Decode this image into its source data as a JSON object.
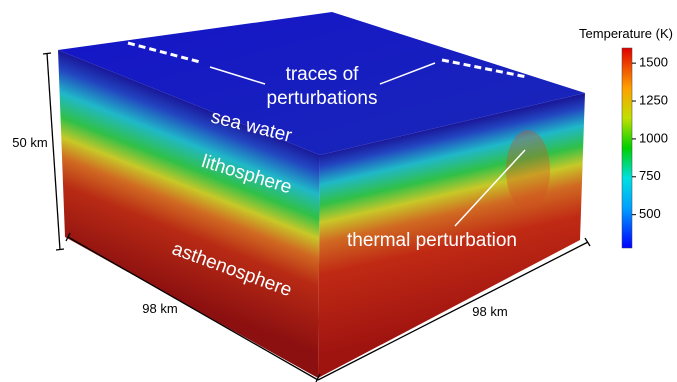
{
  "figure": {
    "annotations": {
      "traces": [
        "traces of",
        "perturbations"
      ],
      "sea_water": "sea water",
      "lithosphere": "lithosphere",
      "asthenosphere": "asthenosphere",
      "thermal": "thermal perturbation"
    },
    "dimensions": {
      "height": "50 km",
      "left_width": "98 km",
      "right_width": "98 km"
    },
    "colorbar": {
      "title": "Temperature (K)",
      "range": [
        280,
        1600
      ],
      "ticks": [
        500,
        750,
        1000,
        1250,
        1500
      ]
    }
  }
}
